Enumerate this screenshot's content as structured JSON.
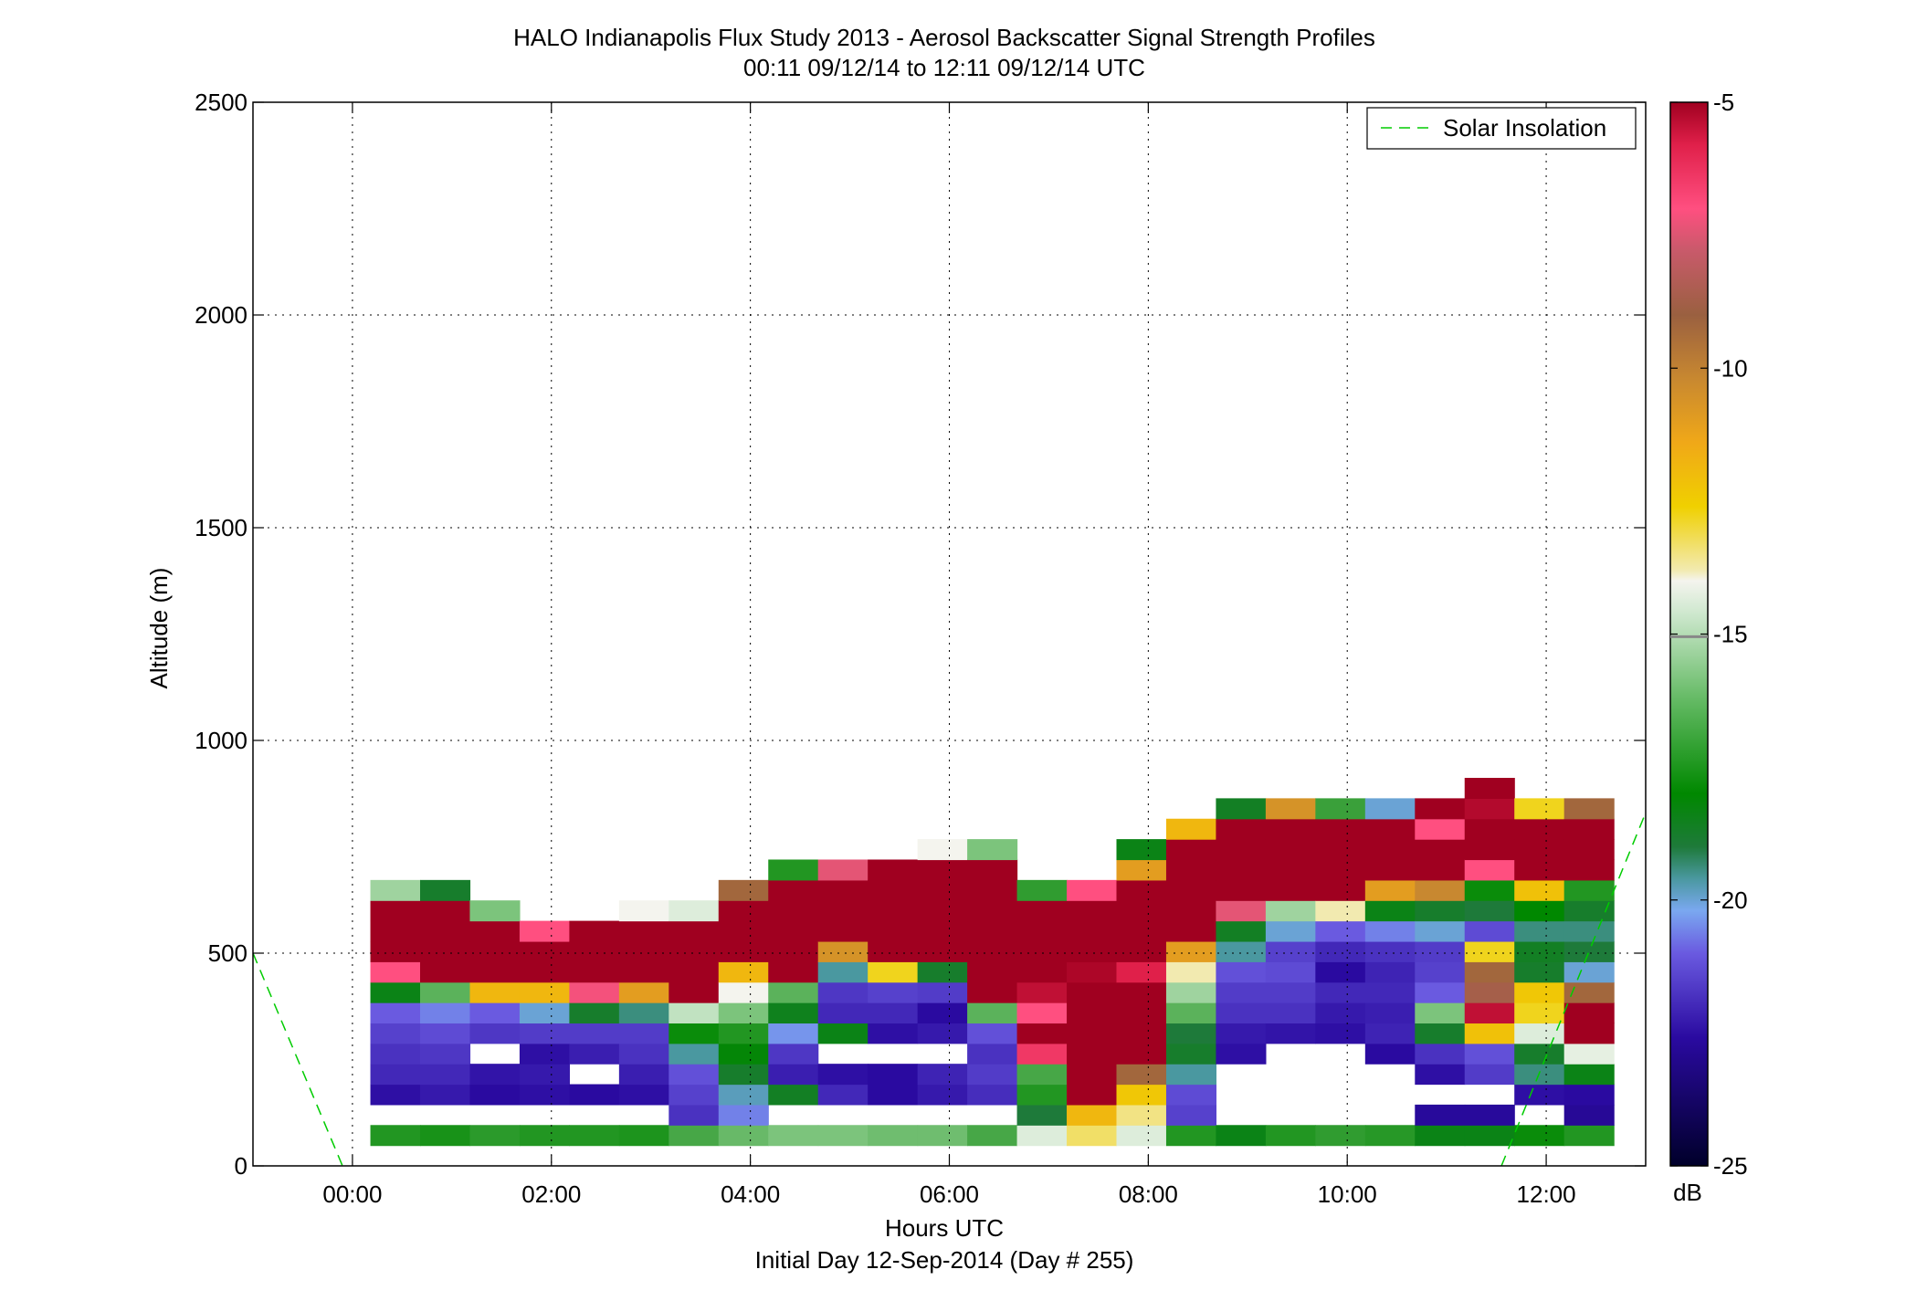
{
  "chart_data": {
    "type": "heatmap",
    "title": "HALO Indianapolis Flux Study 2013 - Aerosol Backscatter Signal Strength Profiles",
    "subtitle": "00:11 09/12/14 to 12:11 09/12/14  UTC",
    "xlabel": "Hours UTC",
    "xlabel2": "Initial Day 12-Sep-2014 (Day # 255)",
    "ylabel": "Altitude (m)",
    "xlim": [
      -1.0,
      13.0
    ],
    "ylim": [
      0,
      2500
    ],
    "x_ticks": [
      0,
      2,
      4,
      6,
      8,
      10,
      12
    ],
    "x_tick_labels": [
      "00:00",
      "02:00",
      "04:00",
      "06:00",
      "08:00",
      "10:00",
      "12:00"
    ],
    "y_ticks": [
      0,
      500,
      1000,
      1500,
      2000,
      2500
    ],
    "y_tick_labels": [
      "0",
      "500",
      "1000",
      "1500",
      "2000",
      "2500"
    ],
    "grid": true,
    "legend": {
      "position": "top-right",
      "entries": [
        {
          "label": "Solar Insolation",
          "color": "#00cc00",
          "style": "dashed"
        }
      ]
    },
    "colorbar": {
      "label": "dB",
      "min": -25,
      "max": -5,
      "ticks": [
        -5,
        -10,
        -15,
        -20,
        -25
      ],
      "tick_labels": [
        "-5",
        "-10",
        "-15",
        "-20",
        "-25"
      ]
    },
    "cell_hours": 0.5,
    "cell_height_m": 48,
    "first_x": 0.18,
    "first_alt_m": 48,
    "columns_note": "each column: [start hour, array of dB values from lowest altitude upward; null = no data]",
    "columns": [
      [
        0.18,
        [
          -18.5,
          null,
          -22.5,
          -22,
          -21.8,
          -21.5,
          -21,
          -19.5,
          -7,
          -5,
          -5,
          -5,
          -16.5
        ]
      ],
      [
        0.68,
        [
          -18.7,
          null,
          -22.3,
          -22,
          -21.7,
          -21.3,
          -20.8,
          -17.5,
          -5,
          -5,
          -5,
          -5,
          -19.8
        ]
      ],
      [
        1.18,
        [
          -18.3,
          null,
          -22.6,
          -22.4,
          null,
          -21.7,
          -21,
          -12.5,
          -5,
          -5,
          -5,
          -17
        ]
      ],
      [
        1.68,
        [
          -18.5,
          null,
          -22.5,
          -22.3,
          -22.5,
          -21.6,
          -20.5,
          -12.5,
          -5,
          -5,
          -7
        ]
      ],
      [
        2.18,
        [
          -18.5,
          null,
          -22.6,
          null,
          -22.2,
          -21.6,
          -19.8,
          -7.2,
          -5,
          -5,
          -5
        ]
      ],
      [
        2.68,
        [
          -18.6,
          null,
          -22.5,
          -22.2,
          -21.8,
          -21.6,
          -20.2,
          -11.5,
          -5,
          -5,
          -5,
          -15
        ]
      ],
      [
        3.18,
        [
          -17.8,
          -21.8,
          -21.5,
          -21.2,
          -20.3,
          -19,
          -16,
          -5,
          -5,
          -5,
          -5,
          -15.5
        ]
      ],
      [
        3.68,
        [
          -17.3,
          -20.8,
          -20.4,
          -19.8,
          -19.3,
          -18.5,
          -17,
          -15,
          -12.5,
          -5,
          -5,
          -5,
          -9.5
        ]
      ],
      [
        4.18,
        [
          -17,
          null,
          -19.7,
          -22.2,
          -21.7,
          -20.7,
          -19.6,
          -17.5,
          -5,
          -5,
          -5,
          -5,
          -5,
          -18.5
        ]
      ],
      [
        4.68,
        [
          -17,
          null,
          -22,
          -22.5,
          null,
          -19.5,
          -22,
          -21.7,
          -20.3,
          -11,
          -5,
          -5,
          -5,
          -7.5
        ]
      ],
      [
        5.18,
        [
          -17.2,
          null,
          -22.6,
          -22.6,
          null,
          -22.5,
          -22,
          -21.5,
          -13.5,
          -5,
          -5,
          -5,
          -5,
          -5
        ]
      ],
      [
        5.68,
        [
          -17.2,
          null,
          -22.3,
          -22.1,
          null,
          -22.3,
          -22.6,
          -21.6,
          -19.8,
          -5,
          -5,
          -5,
          -5,
          -5,
          -15
        ]
      ],
      [
        6.18,
        [
          -17.8,
          null,
          -21.9,
          -21.6,
          -21.8,
          -21.2,
          -17.5,
          -5,
          -5,
          -5,
          -5,
          -5,
          -5,
          -5,
          -17
        ]
      ],
      [
        6.68,
        [
          -15.5,
          -20,
          -18.5,
          -17.8,
          -6.5,
          -5,
          -7,
          -5.5,
          -5,
          -5,
          -5,
          -5,
          -18.2
        ]
      ],
      [
        7.18,
        [
          -14,
          -12.5,
          -5,
          -5,
          -5,
          -5,
          -5,
          -5,
          -5.2,
          -5,
          -5,
          -5,
          -7
        ]
      ],
      [
        7.68,
        [
          -15.5,
          -14.2,
          -13,
          -9.5,
          -5,
          -5,
          -5,
          -5,
          -6,
          -5,
          -5,
          -5,
          -5,
          -11.5,
          -19.5
        ]
      ],
      [
        8.18,
        [
          -18.5,
          -21.5,
          -21.3,
          -20.3,
          -19.8,
          -20,
          -17.5,
          -16.5,
          -14.5,
          -11.5,
          -5,
          -5,
          -5,
          -5,
          -5,
          -12.5
        ]
      ],
      [
        8.68,
        [
          -19.5,
          null,
          null,
          null,
          -22.5,
          -22.3,
          -21.8,
          -21.6,
          -21.2,
          -20.3,
          -19.7,
          -7.5,
          -5,
          -5,
          -5,
          -5,
          -19.7
        ]
      ],
      [
        9.18,
        [
          -18.5,
          null,
          null,
          null,
          null,
          -22.4,
          -21.8,
          -21.6,
          -21.3,
          -21.5,
          -20.5,
          -16.5,
          -5,
          -5,
          -5,
          -5,
          -11
        ]
      ],
      [
        9.68,
        [
          -18.2,
          null,
          null,
          null,
          null,
          -22.5,
          -22.3,
          -22,
          -22.6,
          -22,
          -21,
          -14.5,
          -5,
          -5,
          -5,
          -5,
          -18
        ]
      ],
      [
        10.18,
        [
          -18.4,
          null,
          null,
          null,
          -22.6,
          -22.1,
          -22.2,
          -22,
          -22.1,
          -21.8,
          -20.8,
          -19.5,
          -11.5,
          -5,
          -5,
          -5,
          -20.5
        ]
      ],
      [
        10.68,
        [
          -19.5,
          -22.7,
          null,
          -22.5,
          -21.8,
          -19.8,
          -17,
          -21,
          -21.5,
          -21.6,
          -20.5,
          -19.8,
          -10.5,
          -5,
          -5,
          -7,
          -5
        ]
      ],
      [
        11.18,
        [
          -19.5,
          -22.7,
          null,
          -21.6,
          -21.2,
          -12.8,
          -5.5,
          -9,
          -9.5,
          -13.5,
          -21.3,
          -20,
          -19,
          -7,
          -5,
          -5,
          -5.3,
          -5
        ]
      ],
      [
        11.68,
        [
          -19,
          null,
          -22.5,
          -20.2,
          -19.8,
          -15.5,
          -13.5,
          -13,
          -19.8,
          -19.7,
          -20.2,
          -19.2,
          -12.8,
          -5,
          -5,
          -5,
          -13.5
        ]
      ],
      [
        12.18,
        [
          -18.5,
          -22.8,
          -22.6,
          -19.5,
          -15.3,
          -5,
          -5,
          -9.5,
          -20.5,
          -20,
          -20.2,
          -19.8,
          -18.5,
          -5,
          -5,
          -5,
          -9.5
        ]
      ]
    ],
    "solar_insolation": [
      {
        "x": [
          -1.0,
          -0.1
        ],
        "y": [
          500,
          0
        ]
      },
      {
        "x": [
          11.55,
          13.0
        ],
        "y": [
          0,
          830
        ]
      }
    ]
  }
}
